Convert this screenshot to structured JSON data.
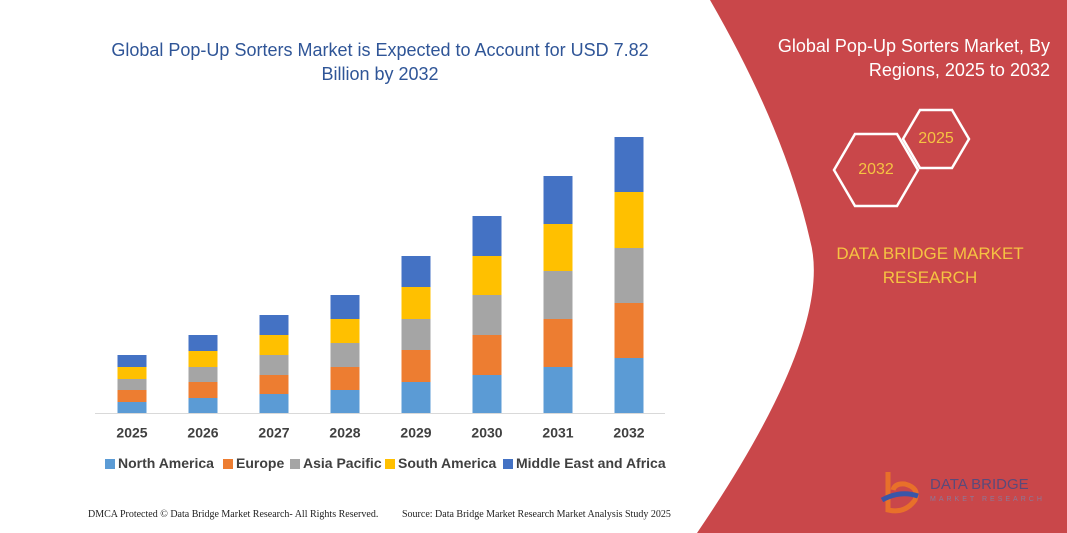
{
  "chart_data": {
    "type": "bar",
    "stacked": true,
    "title": "Global Pop-Up Sorters Market is Expected to Account for USD 7.82 Billion by 2032",
    "categories": [
      "2025",
      "2026",
      "2027",
      "2028",
      "2029",
      "2030",
      "2031",
      "2032"
    ],
    "series": [
      {
        "name": "North America",
        "color": "#5b9bd5",
        "values": [
          11,
          15,
          19,
          23,
          31,
          38,
          46,
          55
        ]
      },
      {
        "name": "Europe",
        "color": "#ed7d31",
        "values": [
          12,
          16,
          19,
          23,
          32,
          40,
          48,
          55
        ]
      },
      {
        "name": "Asia Pacific",
        "color": "#a5a5a5",
        "values": [
          11,
          15,
          20,
          24,
          31,
          40,
          48,
          55
        ]
      },
      {
        "name": "South America",
        "color": "#ffc000",
        "values": [
          12,
          16,
          20,
          24,
          32,
          39,
          47,
          56
        ]
      },
      {
        "name": "Middle East and Africa",
        "color": "#4472c4",
        "values": [
          12,
          16,
          20,
          24,
          31,
          40,
          48,
          55
        ]
      }
    ],
    "ylim": [
      0,
      300
    ]
  },
  "panel": {
    "title": "Global Pop-Up Sorters Market, By Regions, 2025 to 2032",
    "hex_labels": [
      "2025",
      "2032"
    ],
    "brand": "DATA BRIDGE MARKET RESEARCH"
  },
  "logo": {
    "name": "DATA BRIDGE",
    "tagline": "MARKET RESEARCH"
  },
  "footer": {
    "left": "DMCA Protected © Data Bridge Market Research- All Rights Reserved.",
    "right": "Source: Data Bridge Market Research Market Analysis Study 2025"
  }
}
